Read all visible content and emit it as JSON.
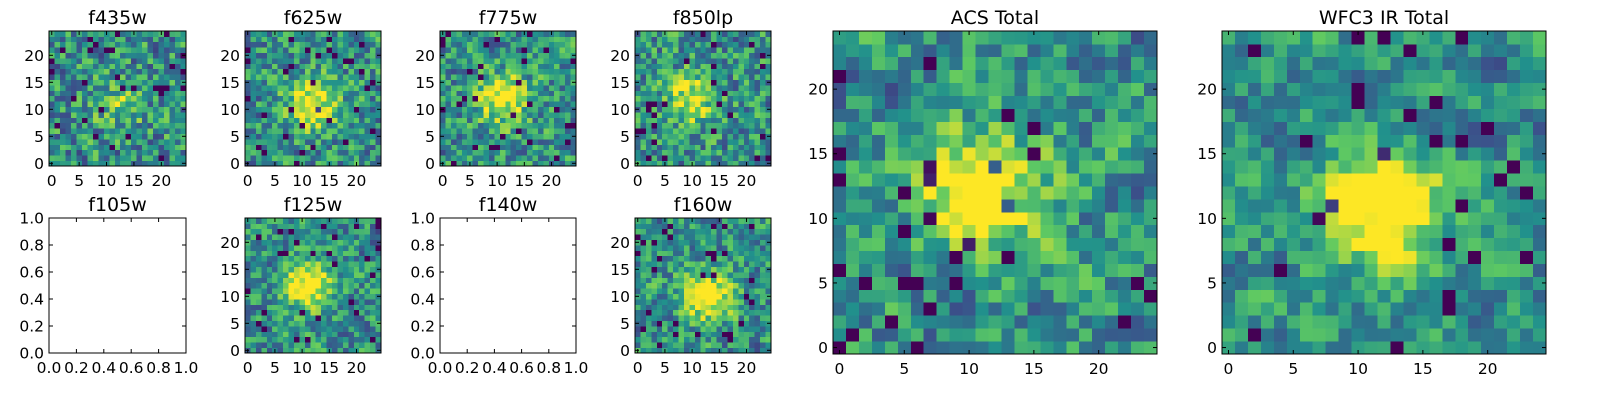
{
  "chart_data": {
    "type": "heatmap",
    "colormap": [
      "#440154",
      "#3b528b",
      "#21918c",
      "#5ec962",
      "#fde725"
    ],
    "panels": [
      {
        "id": "f435w",
        "title": "f435w",
        "kind": "image",
        "grid_size": 25,
        "center": [
          12,
          11
        ],
        "peak": 0.25,
        "noise": 1.0,
        "seed": 11,
        "xlim": [
          -0.5,
          24.5
        ],
        "ylim": [
          -0.5,
          24.5
        ],
        "xticks": [
          0,
          5,
          10,
          15,
          20
        ],
        "yticks": [
          0,
          5,
          10,
          15,
          20
        ]
      },
      {
        "id": "f625w",
        "title": "f625w",
        "kind": "image",
        "grid_size": 25,
        "center": [
          12,
          11
        ],
        "peak": 0.55,
        "noise": 0.9,
        "seed": 23,
        "xlim": [
          -0.5,
          24.5
        ],
        "ylim": [
          -0.5,
          24.5
        ],
        "xticks": [
          0,
          5,
          10,
          15,
          20
        ],
        "yticks": [
          0,
          5,
          10,
          15,
          20
        ]
      },
      {
        "id": "f775w",
        "title": "f775w",
        "kind": "image",
        "grid_size": 25,
        "center": [
          11,
          12
        ],
        "peak": 0.55,
        "noise": 0.9,
        "seed": 37,
        "xlim": [
          -0.5,
          24.5
        ],
        "ylim": [
          -0.5,
          24.5
        ],
        "xticks": [
          0,
          5,
          10,
          15,
          20
        ],
        "yticks": [
          0,
          5,
          10,
          15,
          20
        ]
      },
      {
        "id": "f850lp",
        "title": "f850lp",
        "kind": "image",
        "grid_size": 25,
        "center": [
          10,
          12
        ],
        "peak": 0.45,
        "noise": 0.95,
        "seed": 41,
        "xlim": [
          -0.5,
          24.5
        ],
        "ylim": [
          -0.5,
          24.5
        ],
        "xticks": [
          0,
          5,
          10,
          15,
          20
        ],
        "yticks": [
          0,
          5,
          10,
          15,
          20
        ]
      },
      {
        "id": "f105w",
        "title": "f105w",
        "kind": "empty",
        "xlim": [
          0,
          1
        ],
        "ylim": [
          0,
          1
        ],
        "xticks": [
          0.0,
          0.2,
          0.4,
          0.6,
          0.8,
          1.0
        ],
        "yticks": [
          0.0,
          0.2,
          0.4,
          0.6,
          0.8,
          1.0
        ],
        "xtick_labels": [
          "0.0",
          "0.2",
          "0.4",
          "0.6",
          "0.8",
          "1.0"
        ],
        "ytick_labels": [
          "0.0",
          "0.2",
          "0.4",
          "0.6",
          "0.8",
          "1.0"
        ]
      },
      {
        "id": "f125w",
        "title": "f125w",
        "kind": "image",
        "grid_size": 25,
        "center": [
          11,
          12
        ],
        "peak": 0.6,
        "noise": 0.8,
        "seed": 53,
        "xlim": [
          -0.5,
          24.5
        ],
        "ylim": [
          -0.5,
          24.5
        ],
        "xticks": [
          0,
          5,
          10,
          15,
          20
        ],
        "yticks": [
          0,
          5,
          10,
          15,
          20
        ]
      },
      {
        "id": "f140w",
        "title": "f140w",
        "kind": "empty",
        "xlim": [
          0,
          1
        ],
        "ylim": [
          0,
          1
        ],
        "xticks": [
          0.0,
          0.2,
          0.4,
          0.6,
          0.8,
          1.0
        ],
        "yticks": [
          0.0,
          0.2,
          0.4,
          0.6,
          0.8,
          1.0
        ],
        "xtick_labels": [
          "0.0",
          "0.2",
          "0.4",
          "0.6",
          "0.8",
          "1.0"
        ],
        "ytick_labels": [
          "0.0",
          "0.2",
          "0.4",
          "0.6",
          "0.8",
          "1.0"
        ]
      },
      {
        "id": "f160w",
        "title": "f160w",
        "kind": "image",
        "grid_size": 25,
        "center": [
          13,
          10
        ],
        "peak": 0.6,
        "noise": 0.8,
        "seed": 67,
        "xlim": [
          -0.5,
          24.5
        ],
        "ylim": [
          -0.5,
          24.5
        ],
        "xticks": [
          0,
          5,
          10,
          15,
          20
        ],
        "yticks": [
          0,
          5,
          10,
          15,
          20
        ]
      },
      {
        "id": "acs-total",
        "title": "ACS Total",
        "kind": "image",
        "grid_size": 25,
        "center": [
          11,
          12
        ],
        "peak": 0.7,
        "noise": 0.75,
        "seed": 79,
        "xlim": [
          -0.5,
          24.5
        ],
        "ylim": [
          -0.5,
          24.5
        ],
        "xticks": [
          0,
          5,
          10,
          15,
          20
        ],
        "yticks": [
          0,
          5,
          10,
          15,
          20
        ]
      },
      {
        "id": "wfc3-ir-total",
        "title": "WFC3 IR Total",
        "kind": "image",
        "grid_size": 25,
        "center": [
          12,
          11
        ],
        "peak": 0.75,
        "noise": 0.6,
        "seed": 97,
        "xlim": [
          -0.5,
          24.5
        ],
        "ylim": [
          -0.5,
          24.5
        ],
        "xticks": [
          0,
          5,
          10,
          15,
          20
        ],
        "yticks": [
          0,
          5,
          10,
          15,
          20
        ]
      }
    ]
  }
}
